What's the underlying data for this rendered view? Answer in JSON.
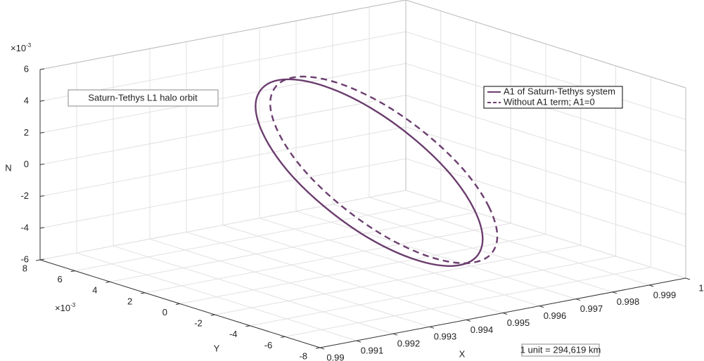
{
  "chart_data": {
    "type": "line3d",
    "xlabel": "X",
    "ylabel": "Y",
    "zlabel": "N",
    "xlim": [
      0.99,
      1
    ],
    "ylim": [
      -8,
      8
    ],
    "zlim": [
      -6,
      6
    ],
    "xticks": [
      0.99,
      0.991,
      0.992,
      0.993,
      0.994,
      0.995,
      0.996,
      0.997,
      0.998,
      0.999,
      1
    ],
    "yticks": [
      -8,
      -6,
      -4,
      -2,
      0,
      2,
      4,
      6,
      8
    ],
    "zticks": [
      -6,
      -4,
      -2,
      0,
      2,
      4,
      6
    ],
    "y_multiplier": {
      "base": "×10",
      "exponent": "-3"
    },
    "z_multiplier": {
      "base": "×10",
      "exponent": "-3"
    },
    "grid": true,
    "legend": "northeast",
    "annotations": [
      "Saturn-Tethys L1 halo orbit",
      "1 unit = 294,619 km"
    ],
    "series": [
      {
        "name": "A1 of Saturn-Tethys system",
        "color": "#6b3d6e",
        "linestyle": "solid",
        "x": [
          0.99494,
          0.99452,
          0.99419,
          0.99402,
          0.99402,
          0.99419,
          0.99452,
          0.99494,
          0.9954,
          0.99582,
          0.99615,
          0.99632,
          0.99632,
          0.99614,
          0.99582,
          0.9954
        ],
        "y": [
          -6.5,
          -6.01,
          -4.6,
          -2.49,
          0,
          2.49,
          4.6,
          6.01,
          6.5,
          6.01,
          4.6,
          2.49,
          0,
          -2.49,
          -4.6,
          -6.01
        ],
        "z": [
          0,
          2.26,
          4.17,
          5.45,
          5.9,
          5.45,
          4.17,
          2.26,
          0,
          -2.26,
          -4.17,
          -5.45,
          -5.9,
          -5.45,
          -4.17,
          -2.26
        ]
      },
      {
        "name": "Without A1 term; A1=0",
        "color": "#6b3d6e",
        "linestyle": "dashed",
        "x": [
          0.99534,
          0.99492,
          0.99459,
          0.99442,
          0.99442,
          0.99459,
          0.99492,
          0.99534,
          0.9958,
          0.99622,
          0.99655,
          0.99672,
          0.99672,
          0.99654,
          0.99622,
          0.9958
        ],
        "y": [
          -6.5,
          -6.01,
          -4.6,
          -2.49,
          0,
          2.49,
          4.6,
          6.01,
          6.5,
          6.01,
          4.6,
          2.49,
          0,
          -2.49,
          -4.6,
          -6.01
        ],
        "z": [
          0,
          2.26,
          4.17,
          5.45,
          5.9,
          5.45,
          4.17,
          2.26,
          0,
          -2.26,
          -4.17,
          -5.45,
          -5.9,
          -5.45,
          -4.17,
          -2.26
        ]
      }
    ]
  }
}
